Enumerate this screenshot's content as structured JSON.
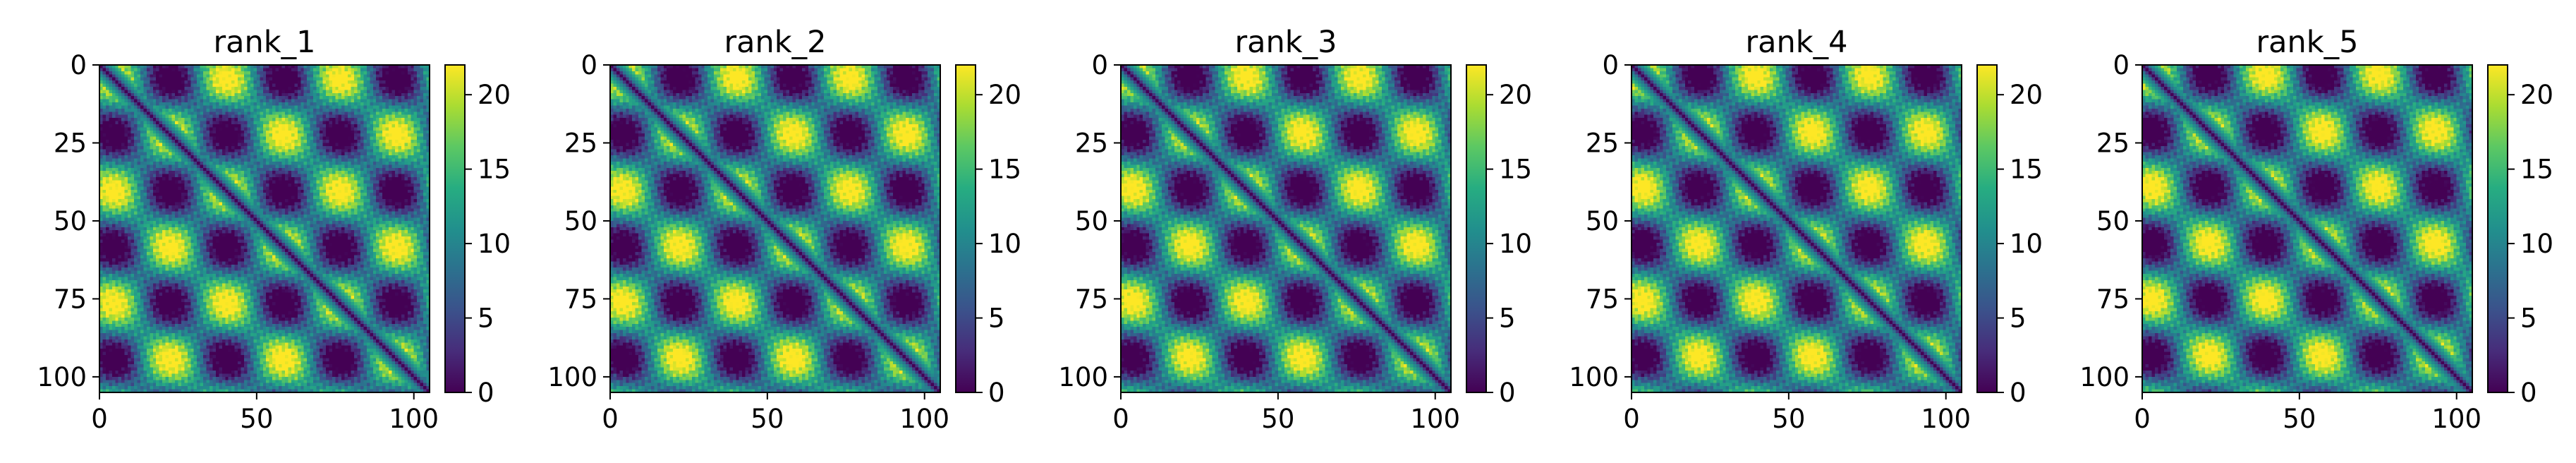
{
  "figure": {
    "panel_count": 5
  },
  "chart_data": [
    {
      "type": "heatmap",
      "title": "rank_1",
      "x_ticks": [
        "0",
        "50",
        "100"
      ],
      "y_ticks": [
        "0",
        "25",
        "50",
        "75",
        "100"
      ],
      "xlim": [
        0,
        105
      ],
      "ylim": [
        105,
        0
      ],
      "colorbar": {
        "ticks": [
          "0",
          "5",
          "10",
          "15",
          "20"
        ],
        "range": [
          0,
          22
        ],
        "colormap": "viridis"
      },
      "matrix_size": 105,
      "grid": false
    },
    {
      "type": "heatmap",
      "title": "rank_2",
      "x_ticks": [
        "0",
        "50",
        "100"
      ],
      "y_ticks": [
        "0",
        "25",
        "50",
        "75",
        "100"
      ],
      "xlim": [
        0,
        105
      ],
      "ylim": [
        105,
        0
      ],
      "colorbar": {
        "ticks": [
          "0",
          "5",
          "10",
          "15",
          "20"
        ],
        "range": [
          0,
          22
        ],
        "colormap": "viridis"
      },
      "matrix_size": 105,
      "grid": false
    },
    {
      "type": "heatmap",
      "title": "rank_3",
      "x_ticks": [
        "0",
        "50",
        "100"
      ],
      "y_ticks": [
        "0",
        "25",
        "50",
        "75",
        "100"
      ],
      "xlim": [
        0,
        105
      ],
      "ylim": [
        105,
        0
      ],
      "colorbar": {
        "ticks": [
          "0",
          "5",
          "10",
          "15",
          "20"
        ],
        "range": [
          0,
          22
        ],
        "colormap": "viridis"
      },
      "matrix_size": 105,
      "grid": false
    },
    {
      "type": "heatmap",
      "title": "rank_4",
      "x_ticks": [
        "0",
        "50",
        "100"
      ],
      "y_ticks": [
        "0",
        "25",
        "50",
        "75",
        "100"
      ],
      "xlim": [
        0,
        105
      ],
      "ylim": [
        105,
        0
      ],
      "colorbar": {
        "ticks": [
          "0",
          "5",
          "10",
          "15",
          "20"
        ],
        "range": [
          0,
          22
        ],
        "colormap": "viridis"
      },
      "matrix_size": 105,
      "grid": false
    },
    {
      "type": "heatmap",
      "title": "rank_5",
      "x_ticks": [
        "0",
        "50",
        "100"
      ],
      "y_ticks": [
        "0",
        "25",
        "50",
        "75",
        "100"
      ],
      "xlim": [
        0,
        105
      ],
      "ylim": [
        105,
        0
      ],
      "colorbar": {
        "ticks": [
          "0",
          "5",
          "10",
          "15",
          "20"
        ],
        "range": [
          0,
          22
        ],
        "colormap": "viridis"
      },
      "matrix_size": 105,
      "grid": false
    }
  ]
}
